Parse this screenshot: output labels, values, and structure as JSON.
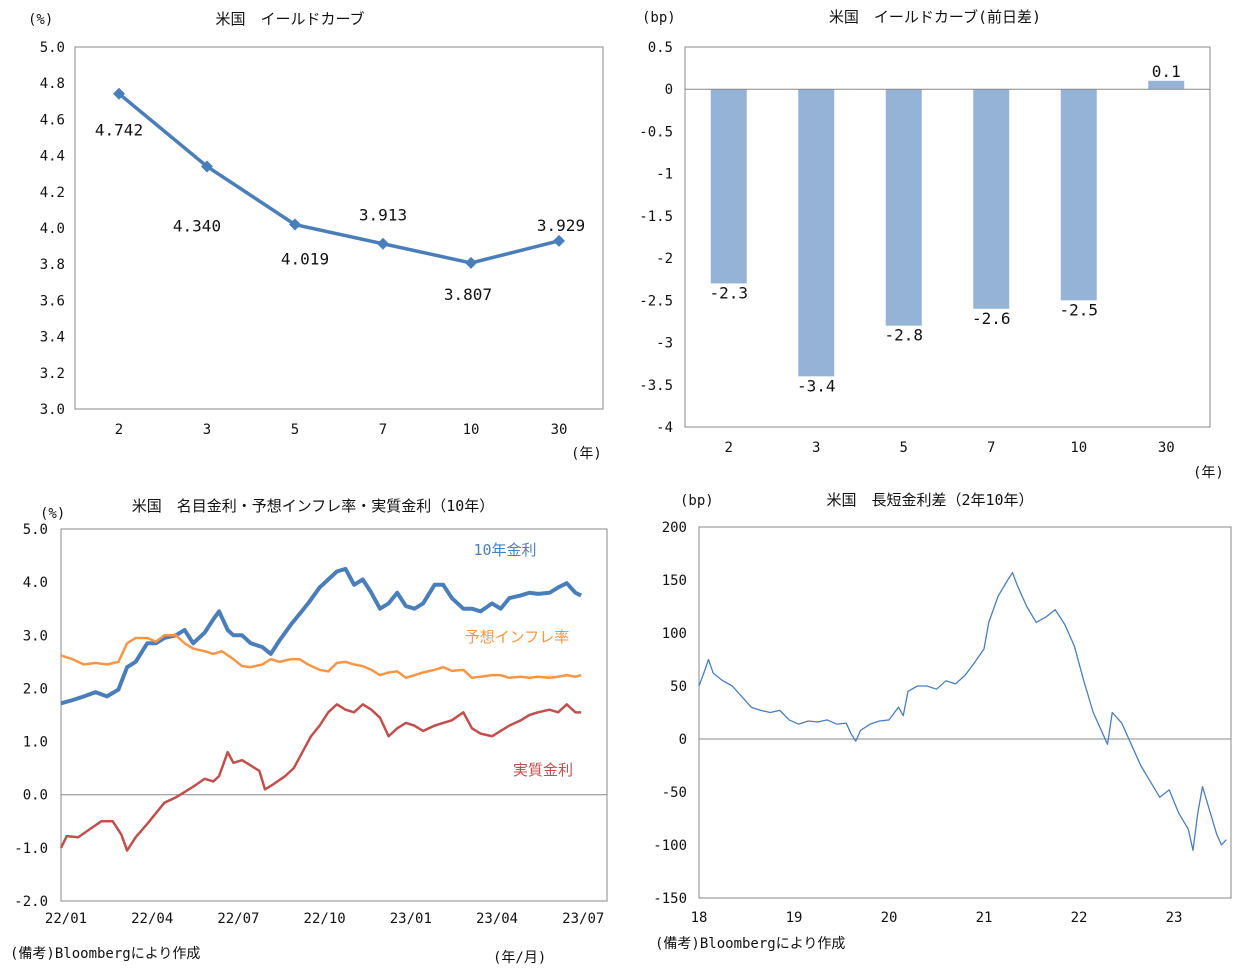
{
  "charts": [
    {
      "id": "c1",
      "type": "line",
      "title": "米国　イールドカーブ",
      "yunit": "(%)",
      "xunit": "(年)",
      "categories": [
        "2",
        "3",
        "5",
        "7",
        "10",
        "30"
      ],
      "values": [
        4.742,
        4.34,
        4.019,
        3.913,
        3.807,
        3.929
      ],
      "value_labels": [
        "4.742",
        "4.340",
        "4.019",
        "3.913",
        "3.807",
        "3.929"
      ],
      "ylim": [
        3.0,
        5.0
      ],
      "yticks": [
        "3.0",
        "3.2",
        "3.4",
        "3.6",
        "3.8",
        "4.0",
        "4.2",
        "4.4",
        "4.6",
        "4.8",
        "5.0"
      ],
      "color": "#4a7ebb"
    },
    {
      "id": "c2",
      "type": "bar",
      "title": "米国　イールドカーブ(前日差)",
      "yunit": "(bp)",
      "xunit": "(年)",
      "categories": [
        "2",
        "3",
        "5",
        "7",
        "10",
        "30"
      ],
      "values": [
        -2.3,
        -3.4,
        -2.8,
        -2.6,
        -2.5,
        0.1
      ],
      "value_labels": [
        "-2.3",
        "-3.4",
        "-2.8",
        "-2.6",
        "-2.5",
        "0.1"
      ],
      "ylim": [
        -4,
        0.5
      ],
      "yticks": [
        "-4",
        "-3.5",
        "-3",
        "-2.5",
        "-2",
        "-1.5",
        "-1",
        "-0.5",
        "0",
        "0.5"
      ],
      "color": "#95b3d7"
    },
    {
      "id": "c3",
      "type": "line",
      "title": "米国　名目金利・予想インフレ率・実質金利（10年）",
      "yunit": "(%)",
      "xunit": "(年/月)",
      "ylim": [
        -2.0,
        5.0
      ],
      "yticks": [
        "-2.0",
        "-1.0",
        "0.0",
        "1.0",
        "2.0",
        "3.0",
        "4.0",
        "5.0"
      ],
      "xticks": [
        "22/01",
        "22/04",
        "22/07",
        "22/10",
        "23/01",
        "23/04",
        "23/07"
      ],
      "x_range_months": [
        0,
        19
      ],
      "series": [
        {
          "name": "10年金利",
          "color": "#4a7ebb",
          "points": [
            [
              0,
              1.72
            ],
            [
              0.4,
              1.78
            ],
            [
              0.8,
              1.85
            ],
            [
              1.2,
              1.93
            ],
            [
              1.6,
              1.85
            ],
            [
              2.0,
              1.98
            ],
            [
              2.3,
              2.4
            ],
            [
              2.6,
              2.5
            ],
            [
              3.0,
              2.85
            ],
            [
              3.3,
              2.85
            ],
            [
              3.6,
              2.95
            ],
            [
              4.0,
              3.0
            ],
            [
              4.3,
              3.1
            ],
            [
              4.6,
              2.85
            ],
            [
              5.0,
              3.05
            ],
            [
              5.3,
              3.3
            ],
            [
              5.5,
              3.45
            ],
            [
              5.8,
              3.1
            ],
            [
              6.0,
              3.0
            ],
            [
              6.3,
              3.0
            ],
            [
              6.6,
              2.85
            ],
            [
              7.0,
              2.78
            ],
            [
              7.3,
              2.65
            ],
            [
              7.6,
              2.9
            ],
            [
              8.0,
              3.2
            ],
            [
              8.3,
              3.4
            ],
            [
              8.6,
              3.6
            ],
            [
              9.0,
              3.9
            ],
            [
              9.3,
              4.05
            ],
            [
              9.6,
              4.2
            ],
            [
              9.9,
              4.25
            ],
            [
              10.2,
              3.95
            ],
            [
              10.5,
              4.05
            ],
            [
              10.8,
              3.8
            ],
            [
              11.1,
              3.5
            ],
            [
              11.4,
              3.6
            ],
            [
              11.7,
              3.8
            ],
            [
              12.0,
              3.55
            ],
            [
              12.3,
              3.5
            ],
            [
              12.6,
              3.6
            ],
            [
              13.0,
              3.95
            ],
            [
              13.3,
              3.95
            ],
            [
              13.6,
              3.7
            ],
            [
              14.0,
              3.5
            ],
            [
              14.3,
              3.5
            ],
            [
              14.6,
              3.45
            ],
            [
              15.0,
              3.6
            ],
            [
              15.3,
              3.5
            ],
            [
              15.6,
              3.7
            ],
            [
              16.0,
              3.75
            ],
            [
              16.3,
              3.8
            ],
            [
              16.6,
              3.78
            ],
            [
              17.0,
              3.8
            ],
            [
              17.3,
              3.9
            ],
            [
              17.6,
              3.98
            ],
            [
              17.9,
              3.8
            ],
            [
              18.1,
              3.75
            ]
          ]
        },
        {
          "name": "予想インフレ率",
          "color": "#f79646",
          "points": [
            [
              0,
              2.62
            ],
            [
              0.4,
              2.55
            ],
            [
              0.8,
              2.45
            ],
            [
              1.2,
              2.48
            ],
            [
              1.6,
              2.45
            ],
            [
              2.0,
              2.5
            ],
            [
              2.3,
              2.85
            ],
            [
              2.6,
              2.95
            ],
            [
              3.0,
              2.95
            ],
            [
              3.3,
              2.88
            ],
            [
              3.6,
              3.0
            ],
            [
              4.0,
              3.0
            ],
            [
              4.3,
              2.85
            ],
            [
              4.6,
              2.75
            ],
            [
              5.0,
              2.7
            ],
            [
              5.3,
              2.65
            ],
            [
              5.6,
              2.7
            ],
            [
              6.0,
              2.55
            ],
            [
              6.3,
              2.42
            ],
            [
              6.6,
              2.4
            ],
            [
              7.0,
              2.45
            ],
            [
              7.3,
              2.55
            ],
            [
              7.6,
              2.5
            ],
            [
              8.0,
              2.55
            ],
            [
              8.3,
              2.55
            ],
            [
              8.6,
              2.45
            ],
            [
              9.0,
              2.35
            ],
            [
              9.3,
              2.32
            ],
            [
              9.6,
              2.48
            ],
            [
              9.9,
              2.5
            ],
            [
              10.2,
              2.45
            ],
            [
              10.5,
              2.42
            ],
            [
              10.8,
              2.35
            ],
            [
              11.1,
              2.25
            ],
            [
              11.4,
              2.3
            ],
            [
              11.7,
              2.32
            ],
            [
              12.0,
              2.2
            ],
            [
              12.3,
              2.25
            ],
            [
              12.6,
              2.3
            ],
            [
              13.0,
              2.35
            ],
            [
              13.3,
              2.4
            ],
            [
              13.6,
              2.33
            ],
            [
              14.0,
              2.35
            ],
            [
              14.3,
              2.2
            ],
            [
              14.6,
              2.22
            ],
            [
              15.0,
              2.25
            ],
            [
              15.3,
              2.25
            ],
            [
              15.6,
              2.2
            ],
            [
              16.0,
              2.22
            ],
            [
              16.3,
              2.2
            ],
            [
              16.6,
              2.22
            ],
            [
              17.0,
              2.2
            ],
            [
              17.3,
              2.22
            ],
            [
              17.6,
              2.25
            ],
            [
              17.9,
              2.22
            ],
            [
              18.1,
              2.25
            ]
          ]
        },
        {
          "name": "実質金利",
          "color": "#c0504d",
          "points": [
            [
              0,
              -1.0
            ],
            [
              0.2,
              -0.78
            ],
            [
              0.6,
              -0.8
            ],
            [
              1.0,
              -0.65
            ],
            [
              1.4,
              -0.5
            ],
            [
              1.8,
              -0.5
            ],
            [
              2.1,
              -0.75
            ],
            [
              2.3,
              -1.05
            ],
            [
              2.6,
              -0.8
            ],
            [
              3.0,
              -0.55
            ],
            [
              3.3,
              -0.35
            ],
            [
              3.6,
              -0.15
            ],
            [
              4.0,
              -0.05
            ],
            [
              4.3,
              0.05
            ],
            [
              4.6,
              0.15
            ],
            [
              5.0,
              0.3
            ],
            [
              5.3,
              0.25
            ],
            [
              5.5,
              0.35
            ],
            [
              5.8,
              0.8
            ],
            [
              6.0,
              0.6
            ],
            [
              6.3,
              0.65
            ],
            [
              6.6,
              0.55
            ],
            [
              6.9,
              0.45
            ],
            [
              7.1,
              0.1
            ],
            [
              7.4,
              0.2
            ],
            [
              7.8,
              0.35
            ],
            [
              8.1,
              0.5
            ],
            [
              8.4,
              0.8
            ],
            [
              8.7,
              1.1
            ],
            [
              9.0,
              1.3
            ],
            [
              9.3,
              1.55
            ],
            [
              9.6,
              1.7
            ],
            [
              9.9,
              1.6
            ],
            [
              10.2,
              1.55
            ],
            [
              10.5,
              1.7
            ],
            [
              10.8,
              1.6
            ],
            [
              11.1,
              1.45
            ],
            [
              11.4,
              1.1
            ],
            [
              11.7,
              1.25
            ],
            [
              12.0,
              1.35
            ],
            [
              12.3,
              1.3
            ],
            [
              12.6,
              1.2
            ],
            [
              13.0,
              1.3
            ],
            [
              13.3,
              1.35
            ],
            [
              13.6,
              1.4
            ],
            [
              14.0,
              1.55
            ],
            [
              14.3,
              1.25
            ],
            [
              14.6,
              1.15
            ],
            [
              15.0,
              1.1
            ],
            [
              15.3,
              1.2
            ],
            [
              15.6,
              1.3
            ],
            [
              16.0,
              1.4
            ],
            [
              16.3,
              1.5
            ],
            [
              16.6,
              1.55
            ],
            [
              17.0,
              1.6
            ],
            [
              17.3,
              1.55
            ],
            [
              17.6,
              1.7
            ],
            [
              17.9,
              1.55
            ],
            [
              18.1,
              1.55
            ]
          ]
        }
      ],
      "note": "(備考)Bloombergにより作成"
    },
    {
      "id": "c4",
      "type": "line",
      "title": "米国　長短金利差（2年10年）",
      "yunit": "(bp)",
      "ylim": [
        -150,
        200
      ],
      "yticks": [
        "-150",
        "-100",
        "-50",
        "0",
        "50",
        "100",
        "150",
        "200"
      ],
      "xticks": [
        "18",
        "19",
        "20",
        "21",
        "22",
        "23"
      ],
      "x_range_years": [
        18.0,
        23.6
      ],
      "color": "#4a7ebb",
      "series": [
        {
          "points": [
            [
              18.0,
              50
            ],
            [
              18.05,
              62
            ],
            [
              18.1,
              75
            ],
            [
              18.15,
              62
            ],
            [
              18.25,
              55
            ],
            [
              18.35,
              50
            ],
            [
              18.45,
              40
            ],
            [
              18.55,
              30
            ],
            [
              18.65,
              27
            ],
            [
              18.75,
              25
            ],
            [
              18.85,
              27
            ],
            [
              18.95,
              18
            ],
            [
              19.05,
              14
            ],
            [
              19.15,
              17
            ],
            [
              19.25,
              16
            ],
            [
              19.35,
              18
            ],
            [
              19.45,
              14
            ],
            [
              19.55,
              15
            ],
            [
              19.6,
              5
            ],
            [
              19.65,
              -2
            ],
            [
              19.7,
              8
            ],
            [
              19.8,
              14
            ],
            [
              19.9,
              17
            ],
            [
              20.0,
              18
            ],
            [
              20.1,
              30
            ],
            [
              20.15,
              22
            ],
            [
              20.2,
              45
            ],
            [
              20.3,
              50
            ],
            [
              20.4,
              50
            ],
            [
              20.5,
              47
            ],
            [
              20.6,
              55
            ],
            [
              20.7,
              52
            ],
            [
              20.8,
              60
            ],
            [
              20.9,
              72
            ],
            [
              21.0,
              85
            ],
            [
              21.05,
              110
            ],
            [
              21.15,
              135
            ],
            [
              21.25,
              150
            ],
            [
              21.3,
              157
            ],
            [
              21.35,
              145
            ],
            [
              21.45,
              125
            ],
            [
              21.55,
              110
            ],
            [
              21.65,
              115
            ],
            [
              21.75,
              122
            ],
            [
              21.85,
              108
            ],
            [
              21.95,
              88
            ],
            [
              22.05,
              55
            ],
            [
              22.15,
              25
            ],
            [
              22.25,
              5
            ],
            [
              22.3,
              -5
            ],
            [
              22.35,
              25
            ],
            [
              22.45,
              15
            ],
            [
              22.55,
              -5
            ],
            [
              22.65,
              -25
            ],
            [
              22.75,
              -40
            ],
            [
              22.85,
              -55
            ],
            [
              22.95,
              -48
            ],
            [
              23.05,
              -70
            ],
            [
              23.15,
              -85
            ],
            [
              23.2,
              -105
            ],
            [
              23.25,
              -70
            ],
            [
              23.3,
              -45
            ],
            [
              23.4,
              -75
            ],
            [
              23.45,
              -90
            ],
            [
              23.5,
              -100
            ],
            [
              23.55,
              -95
            ]
          ]
        }
      ],
      "note": "(備考)Bloombergにより作成"
    }
  ]
}
